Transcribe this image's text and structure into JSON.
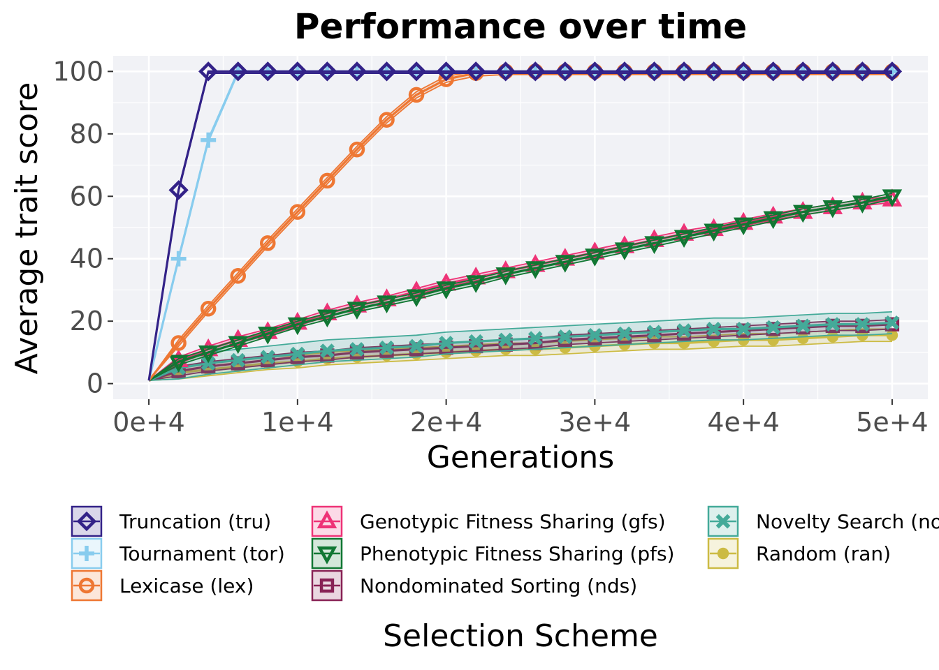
{
  "chart_data": {
    "type": "line",
    "title": "Performance over time",
    "xlabel": "Generations",
    "ylabel": "Average trait score",
    "xlim": [
      -2400,
      52400
    ],
    "ylim": [
      -5,
      105
    ],
    "x_ticks": [
      0,
      10000,
      20000,
      30000,
      40000,
      50000
    ],
    "x_tick_labels": [
      "0e+4",
      "1e+4",
      "2e+4",
      "3e+4",
      "4e+4",
      "5e+4"
    ],
    "y_ticks": [
      0,
      20,
      40,
      60,
      80,
      100
    ],
    "y_tick_labels": [
      "0",
      "20",
      "40",
      "60",
      "80",
      "100"
    ],
    "grid": true,
    "legend_title": "Selection Scheme",
    "legend_position": "bottom",
    "x": [
      0,
      2000,
      4000,
      6000,
      8000,
      10000,
      12000,
      14000,
      16000,
      18000,
      20000,
      22000,
      24000,
      26000,
      28000,
      30000,
      32000,
      34000,
      36000,
      38000,
      40000,
      42000,
      44000,
      46000,
      48000,
      50000
    ],
    "series": [
      {
        "name": "Truncation (tru)",
        "color": "#332288",
        "marker": "diamond",
        "values": [
          1,
          62,
          100,
          100,
          100,
          100,
          100,
          100,
          100,
          100,
          100,
          100,
          100,
          100,
          100,
          100,
          100,
          100,
          100,
          100,
          100,
          100,
          100,
          100,
          100,
          100
        ]
      },
      {
        "name": "Tournament (tor)",
        "color": "#88CCEE",
        "marker": "plus",
        "values": [
          1,
          40,
          78,
          100,
          100,
          100,
          100,
          100,
          100,
          100,
          100,
          100,
          100,
          100,
          100,
          100,
          100,
          100,
          100,
          100,
          100,
          100,
          100,
          100,
          100,
          100
        ]
      },
      {
        "name": "Lexicase (lex)",
        "color": "#EE7733",
        "marker": "circle-open",
        "values": [
          1,
          13,
          24,
          34.5,
          45,
          55,
          65,
          75,
          84.5,
          92.5,
          97.5,
          99.5,
          100,
          100,
          100,
          100,
          100,
          100,
          100,
          100,
          100,
          100,
          100,
          100,
          100,
          100
        ]
      },
      {
        "name": "Genotypic Fitness Sharing (gfs)",
        "color": "#EE3377",
        "marker": "triangle-up",
        "values": [
          1,
          7.5,
          11,
          14,
          16.5,
          19.5,
          22.5,
          25,
          27,
          29.5,
          32,
          34,
          36,
          38,
          40,
          42,
          44,
          46,
          48,
          49.5,
          51.5,
          53.5,
          55,
          56.5,
          58,
          59
        ]
      },
      {
        "name": "Phenotypic Fitness Sharing (pfs)",
        "color": "#117733",
        "marker": "triangle-down",
        "values": [
          1,
          7,
          10,
          13,
          16,
          19,
          21.5,
          24,
          26,
          28,
          30.5,
          32.5,
          35,
          37,
          39,
          41,
          43,
          45,
          47,
          49,
          51,
          53,
          55,
          56.5,
          58,
          60
        ]
      },
      {
        "name": "Nondominated Sorting (nds)",
        "color": "#882255",
        "marker": "square-minus",
        "values": [
          1,
          4,
          5.5,
          6.5,
          7.5,
          8.5,
          9,
          10,
          10.5,
          11,
          11.5,
          12,
          12.5,
          13,
          14,
          14.5,
          15,
          15.5,
          16,
          16.5,
          17,
          17.5,
          18,
          18.5,
          18.5,
          19
        ]
      },
      {
        "name": "Novelty Search (nov)",
        "color": "#44AA99",
        "marker": "cross",
        "values": [
          1,
          5,
          6.5,
          7.5,
          8.5,
          9.5,
          10.5,
          11,
          11.5,
          12,
          13,
          13.5,
          14,
          14.5,
          15,
          15.5,
          16,
          16.5,
          17,
          17.5,
          17.5,
          18,
          18.5,
          19,
          19,
          19.5
        ]
      },
      {
        "name": "Random (ran)",
        "color": "#CCBB44",
        "marker": "circle-filled",
        "values": [
          1,
          3.5,
          4.5,
          5.5,
          6.5,
          7,
          8,
          8.5,
          9,
          9.5,
          10,
          10.5,
          11,
          11,
          11.5,
          12,
          12.5,
          13,
          13,
          13.5,
          14,
          14,
          14.5,
          15,
          15.5,
          15.5
        ]
      }
    ]
  }
}
